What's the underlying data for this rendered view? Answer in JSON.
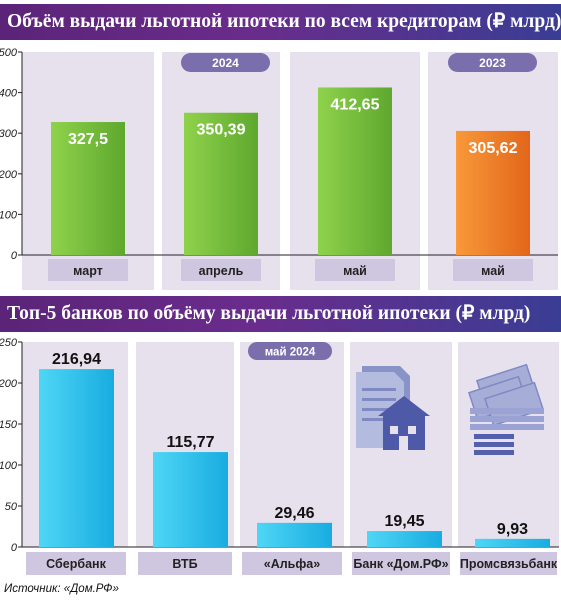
{
  "chart_data": [
    {
      "type": "bar",
      "title": "Объём выдачи льготной ипотеки по всем кредиторам (₽ млрд)",
      "categories": [
        "март",
        "апрель",
        "май",
        "май"
      ],
      "values": [
        327.5,
        350.39,
        412.65,
        305.62
      ],
      "value_labels": [
        "327,5",
        "350,39",
        "412,65",
        "305,62"
      ],
      "group_labels": [
        "2024",
        "2024",
        "2024",
        "2023"
      ],
      "groups": [
        "2024",
        "2023"
      ],
      "ylim": [
        0,
        500
      ],
      "yticks": [
        0,
        100,
        200,
        300,
        400,
        500
      ],
      "bar_colors": [
        "#7cc242",
        "#7cc242",
        "#7cc242",
        "#f07f22"
      ],
      "grid": false
    },
    {
      "type": "bar",
      "title": "Топ-5 банков по объёму выдачи льготной ипотеки (₽ млрд)",
      "subtitle": "май 2024",
      "categories": [
        "Сбербанк",
        "ВТБ",
        "«Альфа»",
        "Банк «Дом.РФ»",
        "Промсвязьбанк"
      ],
      "values": [
        216.94,
        115.77,
        29.46,
        19.45,
        9.93
      ],
      "value_labels": [
        "216,94",
        "115,77",
        "29,46",
        "19,45",
        "9,93"
      ],
      "ylim": [
        0,
        250
      ],
      "yticks": [
        0,
        50,
        100,
        150,
        200,
        250
      ],
      "bar_color": "#29c2ec",
      "grid": false
    }
  ],
  "icons": [
    "house-document-icon",
    "money-stack-icon"
  ],
  "colors": {
    "panel": "#e7e1ee",
    "label_box": "#cfc7e0",
    "banner": "#5b2478",
    "bar_green": "#7cc242",
    "bar_orange": "#f07f22",
    "bar_blue": "#29c2ec"
  },
  "source": "Источник: «Дом.РФ»"
}
